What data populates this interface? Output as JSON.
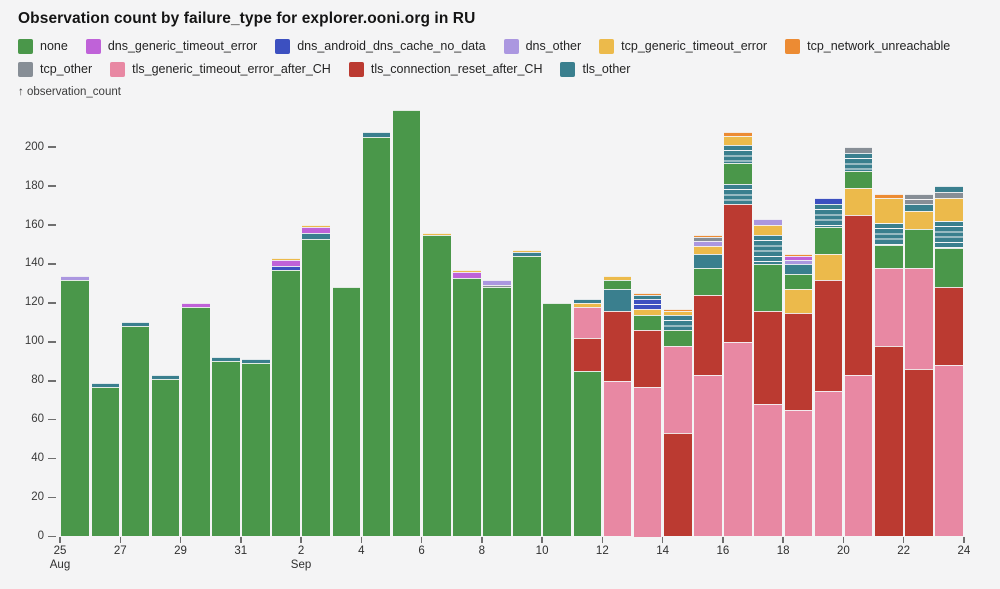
{
  "title": "Observation count by failure_type for explorer.ooni.org in RU",
  "y_axis": {
    "label": "↑ observation_count",
    "ticks": [
      0,
      20,
      40,
      60,
      80,
      100,
      120,
      140,
      160,
      180,
      200
    ]
  },
  "x_axis": {
    "tick_days": [
      0,
      2,
      4,
      6,
      8,
      10,
      12,
      14,
      16,
      18,
      20,
      22,
      24,
      26,
      28,
      30
    ],
    "tick_labels": [
      "25",
      "27",
      "29",
      "31",
      "2",
      "4",
      "6",
      "8",
      "10",
      "12",
      "14",
      "16",
      "18",
      "20",
      "22",
      "24"
    ],
    "month_labels": [
      {
        "text": "Aug",
        "day": 0
      },
      {
        "text": "Sep",
        "day": 8
      }
    ]
  },
  "legend": [
    {
      "key": "none",
      "label": "none",
      "color": "#4a974a"
    },
    {
      "key": "dns_generic_timeout_error",
      "label": "dns_generic_timeout_error",
      "color": "#bf62d8"
    },
    {
      "key": "dns_android_dns_cache_no_data",
      "label": "dns_android_dns_cache_no_data",
      "color": "#3c50c0"
    },
    {
      "key": "dns_other",
      "label": "dns_other",
      "color": "#ab97e0"
    },
    {
      "key": "tcp_generic_timeout_error",
      "label": "tcp_generic_timeout_error",
      "color": "#ecba4b"
    },
    {
      "key": "tcp_network_unreachable",
      "label": "tcp_network_unreachable",
      "color": "#ec8b33"
    },
    {
      "key": "tcp_other",
      "label": "tcp_other",
      "color": "#878e96"
    },
    {
      "key": "tls_generic_timeout_error_after_CH",
      "label": "tls_generic_timeout_error_after_CH",
      "color": "#e888a3"
    },
    {
      "key": "tls_connection_reset_after_CH",
      "label": "tls_connection_reset_after_CH",
      "color": "#bb3a31"
    },
    {
      "key": "tls_other",
      "label": "tls_other",
      "color": "#3a7f8e"
    }
  ],
  "chart_data": {
    "type": "bar",
    "stacked": true,
    "title": "Observation count by failure_type for explorer.ooni.org in RU",
    "xlabel": "",
    "ylabel": "observation_count",
    "ylim": [
      0,
      220
    ],
    "grid": false,
    "legend_position": "top",
    "x_range": [
      "Aug 25",
      "Sep 23"
    ],
    "series_colors": {
      "none": "#4a974a",
      "dns_generic_timeout_error": "#bf62d8",
      "dns_android_dns_cache_no_data": "#3c50c0",
      "dns_other": "#ab97e0",
      "tcp_generic_timeout_error": "#ecba4b",
      "tcp_network_unreachable": "#ec8b33",
      "tcp_other": "#878e96",
      "tls_generic_timeout_error_after_CH": "#e888a3",
      "tls_connection_reset_after_CH": "#bb3a31",
      "tls_other": "#3a7f8e"
    },
    "bars": [
      {
        "date": "Aug 25",
        "total": 134,
        "segments": [
          [
            "none",
            132
          ],
          [
            "dns_other",
            2
          ]
        ]
      },
      {
        "date": "Aug 26",
        "total": 79,
        "segments": [
          [
            "none",
            77
          ],
          [
            "tls_other",
            2
          ]
        ]
      },
      {
        "date": "Aug 27",
        "total": 110,
        "segments": [
          [
            "none",
            108
          ],
          [
            "tls_other",
            2
          ]
        ]
      },
      {
        "date": "Aug 28",
        "total": 83,
        "segments": [
          [
            "none",
            81
          ],
          [
            "tls_other",
            2
          ]
        ]
      },
      {
        "date": "Aug 29",
        "total": 120,
        "segments": [
          [
            "none",
            118
          ],
          [
            "dns_generic_timeout_error",
            2
          ]
        ]
      },
      {
        "date": "Aug 30",
        "total": 92,
        "segments": [
          [
            "none",
            90
          ],
          [
            "tls_other",
            2
          ]
        ]
      },
      {
        "date": "Aug 31",
        "total": 91,
        "segments": [
          [
            "none",
            89
          ],
          [
            "tls_other",
            2
          ]
        ]
      },
      {
        "date": "Sep 1",
        "total": 143,
        "segments": [
          [
            "none",
            137
          ],
          [
            "dns_android_dns_cache_no_data",
            2
          ],
          [
            "dns_generic_timeout_error",
            3
          ],
          [
            "tcp_generic_timeout_error",
            1
          ]
        ]
      },
      {
        "date": "Sep 2",
        "total": 160,
        "segments": [
          [
            "none",
            153
          ],
          [
            "tls_other",
            3
          ],
          [
            "dns_generic_timeout_error",
            3
          ],
          [
            "tcp_generic_timeout_error",
            1
          ]
        ]
      },
      {
        "date": "Sep 3",
        "total": 128,
        "segments": [
          [
            "none",
            128
          ]
        ]
      },
      {
        "date": "Sep 4",
        "total": 208,
        "segments": [
          [
            "none",
            205
          ],
          [
            "tls_other",
            3
          ]
        ]
      },
      {
        "date": "Sep 5",
        "total": 219,
        "segments": [
          [
            "none",
            219
          ]
        ]
      },
      {
        "date": "Sep 6",
        "total": 156,
        "segments": [
          [
            "none",
            155
          ],
          [
            "tcp_generic_timeout_error",
            1
          ]
        ]
      },
      {
        "date": "Sep 7",
        "total": 137,
        "segments": [
          [
            "none",
            133
          ],
          [
            "dns_generic_timeout_error",
            3
          ],
          [
            "tcp_generic_timeout_error",
            1
          ]
        ]
      },
      {
        "date": "Sep 8",
        "total": 132,
        "segments": [
          [
            "none",
            128
          ],
          [
            "tcp_other",
            1
          ],
          [
            "dns_other",
            3
          ]
        ]
      },
      {
        "date": "Sep 9",
        "total": 147,
        "segments": [
          [
            "none",
            144
          ],
          [
            "tls_other",
            2
          ],
          [
            "tcp_generic_timeout_error",
            1
          ]
        ]
      },
      {
        "date": "Sep 10",
        "total": 120,
        "segments": [
          [
            "none",
            120
          ]
        ]
      },
      {
        "date": "Sep 11",
        "total": 122,
        "segments": [
          [
            "none",
            85
          ],
          [
            "tls_connection_reset_after_CH",
            17
          ],
          [
            "tls_generic_timeout_error_after_CH",
            16
          ],
          [
            "tcp_generic_timeout_error",
            2
          ],
          [
            "tls_other",
            2
          ]
        ]
      },
      {
        "date": "Sep 12",
        "total": 134,
        "segments": [
          [
            "tls_generic_timeout_error_after_CH",
            80
          ],
          [
            "tls_connection_reset_after_CH",
            36
          ],
          [
            "tls_other",
            11
          ],
          [
            "none",
            5
          ],
          [
            "tcp_generic_timeout_error",
            2
          ]
        ]
      },
      {
        "date": "Sep 13",
        "total": 125,
        "segments": [
          [
            "tls_generic_timeout_error_after_CH",
            77
          ],
          [
            "tls_connection_reset_after_CH",
            29
          ],
          [
            "none",
            8
          ],
          [
            "tcp_generic_timeout_error",
            3
          ],
          [
            "dns_android_dns_cache_no_data",
            5,
            true
          ],
          [
            "tls_other",
            2
          ],
          [
            "tcp_network_unreachable",
            1
          ]
        ]
      },
      {
        "date": "Sep 14",
        "total": 117,
        "segments": [
          [
            "tls_connection_reset_after_CH",
            53
          ],
          [
            "tls_generic_timeout_error_after_CH",
            45
          ],
          [
            "none",
            8
          ],
          [
            "tls_other",
            8,
            true
          ],
          [
            "tcp_generic_timeout_error",
            2
          ],
          [
            "tcp_network_unreachable",
            1
          ]
        ]
      },
      {
        "date": "Sep 15",
        "total": 155,
        "segments": [
          [
            "tls_generic_timeout_error_after_CH",
            83
          ],
          [
            "tls_connection_reset_after_CH",
            41
          ],
          [
            "none",
            14
          ],
          [
            "tls_other",
            7
          ],
          [
            "tcp_generic_timeout_error",
            4
          ],
          [
            "dns_other",
            3
          ],
          [
            "tcp_other",
            2
          ],
          [
            "tcp_network_unreachable",
            1
          ]
        ]
      },
      {
        "date": "Sep 16",
        "total": 208,
        "segments": [
          [
            "tls_generic_timeout_error_after_CH",
            100
          ],
          [
            "tls_connection_reset_after_CH",
            71
          ],
          [
            "tls_other",
            10,
            true
          ],
          [
            "none",
            11
          ],
          [
            "tls_other",
            9,
            true
          ],
          [
            "tcp_generic_timeout_error",
            5
          ],
          [
            "tcp_network_unreachable",
            2
          ]
        ]
      },
      {
        "date": "Sep 17",
        "total": 163,
        "segments": [
          [
            "tls_generic_timeout_error_after_CH",
            68
          ],
          [
            "tls_connection_reset_after_CH",
            48
          ],
          [
            "none",
            24
          ],
          [
            "tls_other",
            15,
            true
          ],
          [
            "tcp_generic_timeout_error",
            5
          ],
          [
            "dns_other",
            3
          ]
        ]
      },
      {
        "date": "Sep 18",
        "total": 145,
        "segments": [
          [
            "tls_generic_timeout_error_after_CH",
            65
          ],
          [
            "tls_connection_reset_after_CH",
            50
          ],
          [
            "tcp_generic_timeout_error",
            12
          ],
          [
            "none",
            8
          ],
          [
            "tls_other",
            5
          ],
          [
            "dns_other",
            2
          ],
          [
            "dns_generic_timeout_error",
            2
          ],
          [
            "tcp_network_unreachable",
            1
          ]
        ]
      },
      {
        "date": "Sep 19",
        "total": 174,
        "segments": [
          [
            "tls_generic_timeout_error_after_CH",
            75
          ],
          [
            "tls_connection_reset_after_CH",
            57
          ],
          [
            "tcp_generic_timeout_error",
            13
          ],
          [
            "none",
            14
          ],
          [
            "tls_other",
            12,
            true
          ],
          [
            "dns_android_dns_cache_no_data",
            3
          ]
        ]
      },
      {
        "date": "Sep 20",
        "total": 200,
        "segments": [
          [
            "tls_generic_timeout_error_after_CH",
            83
          ],
          [
            "tls_connection_reset_after_CH",
            82
          ],
          [
            "tcp_generic_timeout_error",
            14
          ],
          [
            "none",
            9
          ],
          [
            "tls_other",
            9,
            true
          ],
          [
            "tcp_other",
            3
          ]
        ]
      },
      {
        "date": "Sep 21",
        "total": 176,
        "segments": [
          [
            "tls_connection_reset_after_CH",
            98
          ],
          [
            "tls_generic_timeout_error_after_CH",
            40
          ],
          [
            "none",
            12
          ],
          [
            "tls_other",
            11,
            true
          ],
          [
            "tcp_generic_timeout_error",
            13
          ],
          [
            "tcp_network_unreachable",
            2
          ]
        ]
      },
      {
        "date": "Sep 22",
        "total": 176,
        "segments": [
          [
            "tls_connection_reset_after_CH",
            86
          ],
          [
            "tls_generic_timeout_error_after_CH",
            52
          ],
          [
            "none",
            20
          ],
          [
            "tcp_generic_timeout_error",
            9
          ],
          [
            "tls_other",
            4
          ],
          [
            "tcp_other",
            5,
            true
          ]
        ]
      },
      {
        "date": "Sep 23",
        "total": 180,
        "segments": [
          [
            "tls_generic_timeout_error_after_CH",
            88
          ],
          [
            "tls_connection_reset_after_CH",
            40
          ],
          [
            "none",
            20
          ],
          [
            "tls_other",
            14,
            true
          ],
          [
            "tcp_generic_timeout_error",
            12
          ],
          [
            "tcp_other",
            3
          ],
          [
            "tls_other",
            3
          ]
        ]
      }
    ]
  }
}
